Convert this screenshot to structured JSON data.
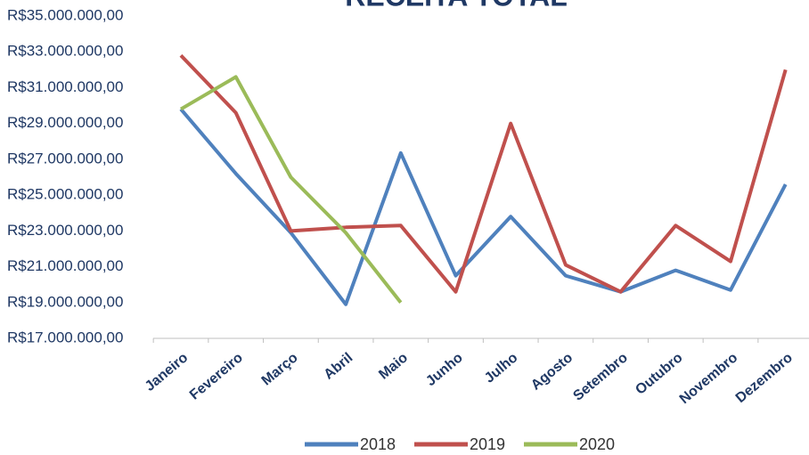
{
  "chart_data": {
    "type": "line",
    "title": "RECEITA TOTAL",
    "categories": [
      "Janeiro",
      "Fevereiro",
      "Março",
      "Abril",
      "Maio",
      "Junho",
      "Julho",
      "Agosto",
      "Setembro",
      "Outubro",
      "Novembro",
      "Dezembro"
    ],
    "series": [
      {
        "name": "2018",
        "color": "#4f81bd",
        "values": [
          29800000,
          26200000,
          22900000,
          18900000,
          27350000,
          20500000,
          23800000,
          20500000,
          19600000,
          20800000,
          19700000,
          25600000
        ]
      },
      {
        "name": "2019",
        "color": "#c0504d",
        "values": [
          32800000,
          29600000,
          23000000,
          23200000,
          23300000,
          19600000,
          29000000,
          21100000,
          19600000,
          23300000,
          21300000,
          32000000
        ]
      },
      {
        "name": "2020",
        "color": "#9bbb59",
        "values": [
          29800000,
          31600000,
          26000000,
          22900000,
          19000000,
          null,
          null,
          null,
          null,
          null,
          null,
          null
        ]
      }
    ],
    "ylim": [
      17000000,
      35000000
    ],
    "yticks": [
      {
        "value": 17000000,
        "label": "R$17.000.000,00"
      },
      {
        "value": 19000000,
        "label": "R$19.000.000,00"
      },
      {
        "value": 21000000,
        "label": "R$21.000.000,00"
      },
      {
        "value": 23000000,
        "label": "R$23.000.000,00"
      },
      {
        "value": 25000000,
        "label": "R$25.000.000,00"
      },
      {
        "value": 27000000,
        "label": "R$27.000.000,00"
      },
      {
        "value": 29000000,
        "label": "R$29.000.000,00"
      },
      {
        "value": 31000000,
        "label": "R$31.000.000,00"
      },
      {
        "value": 33000000,
        "label": "R$33.000.000,00"
      },
      {
        "value": 35000000,
        "label": "R$35.000.000,00"
      }
    ],
    "grid": false,
    "legend": "bottom"
  }
}
